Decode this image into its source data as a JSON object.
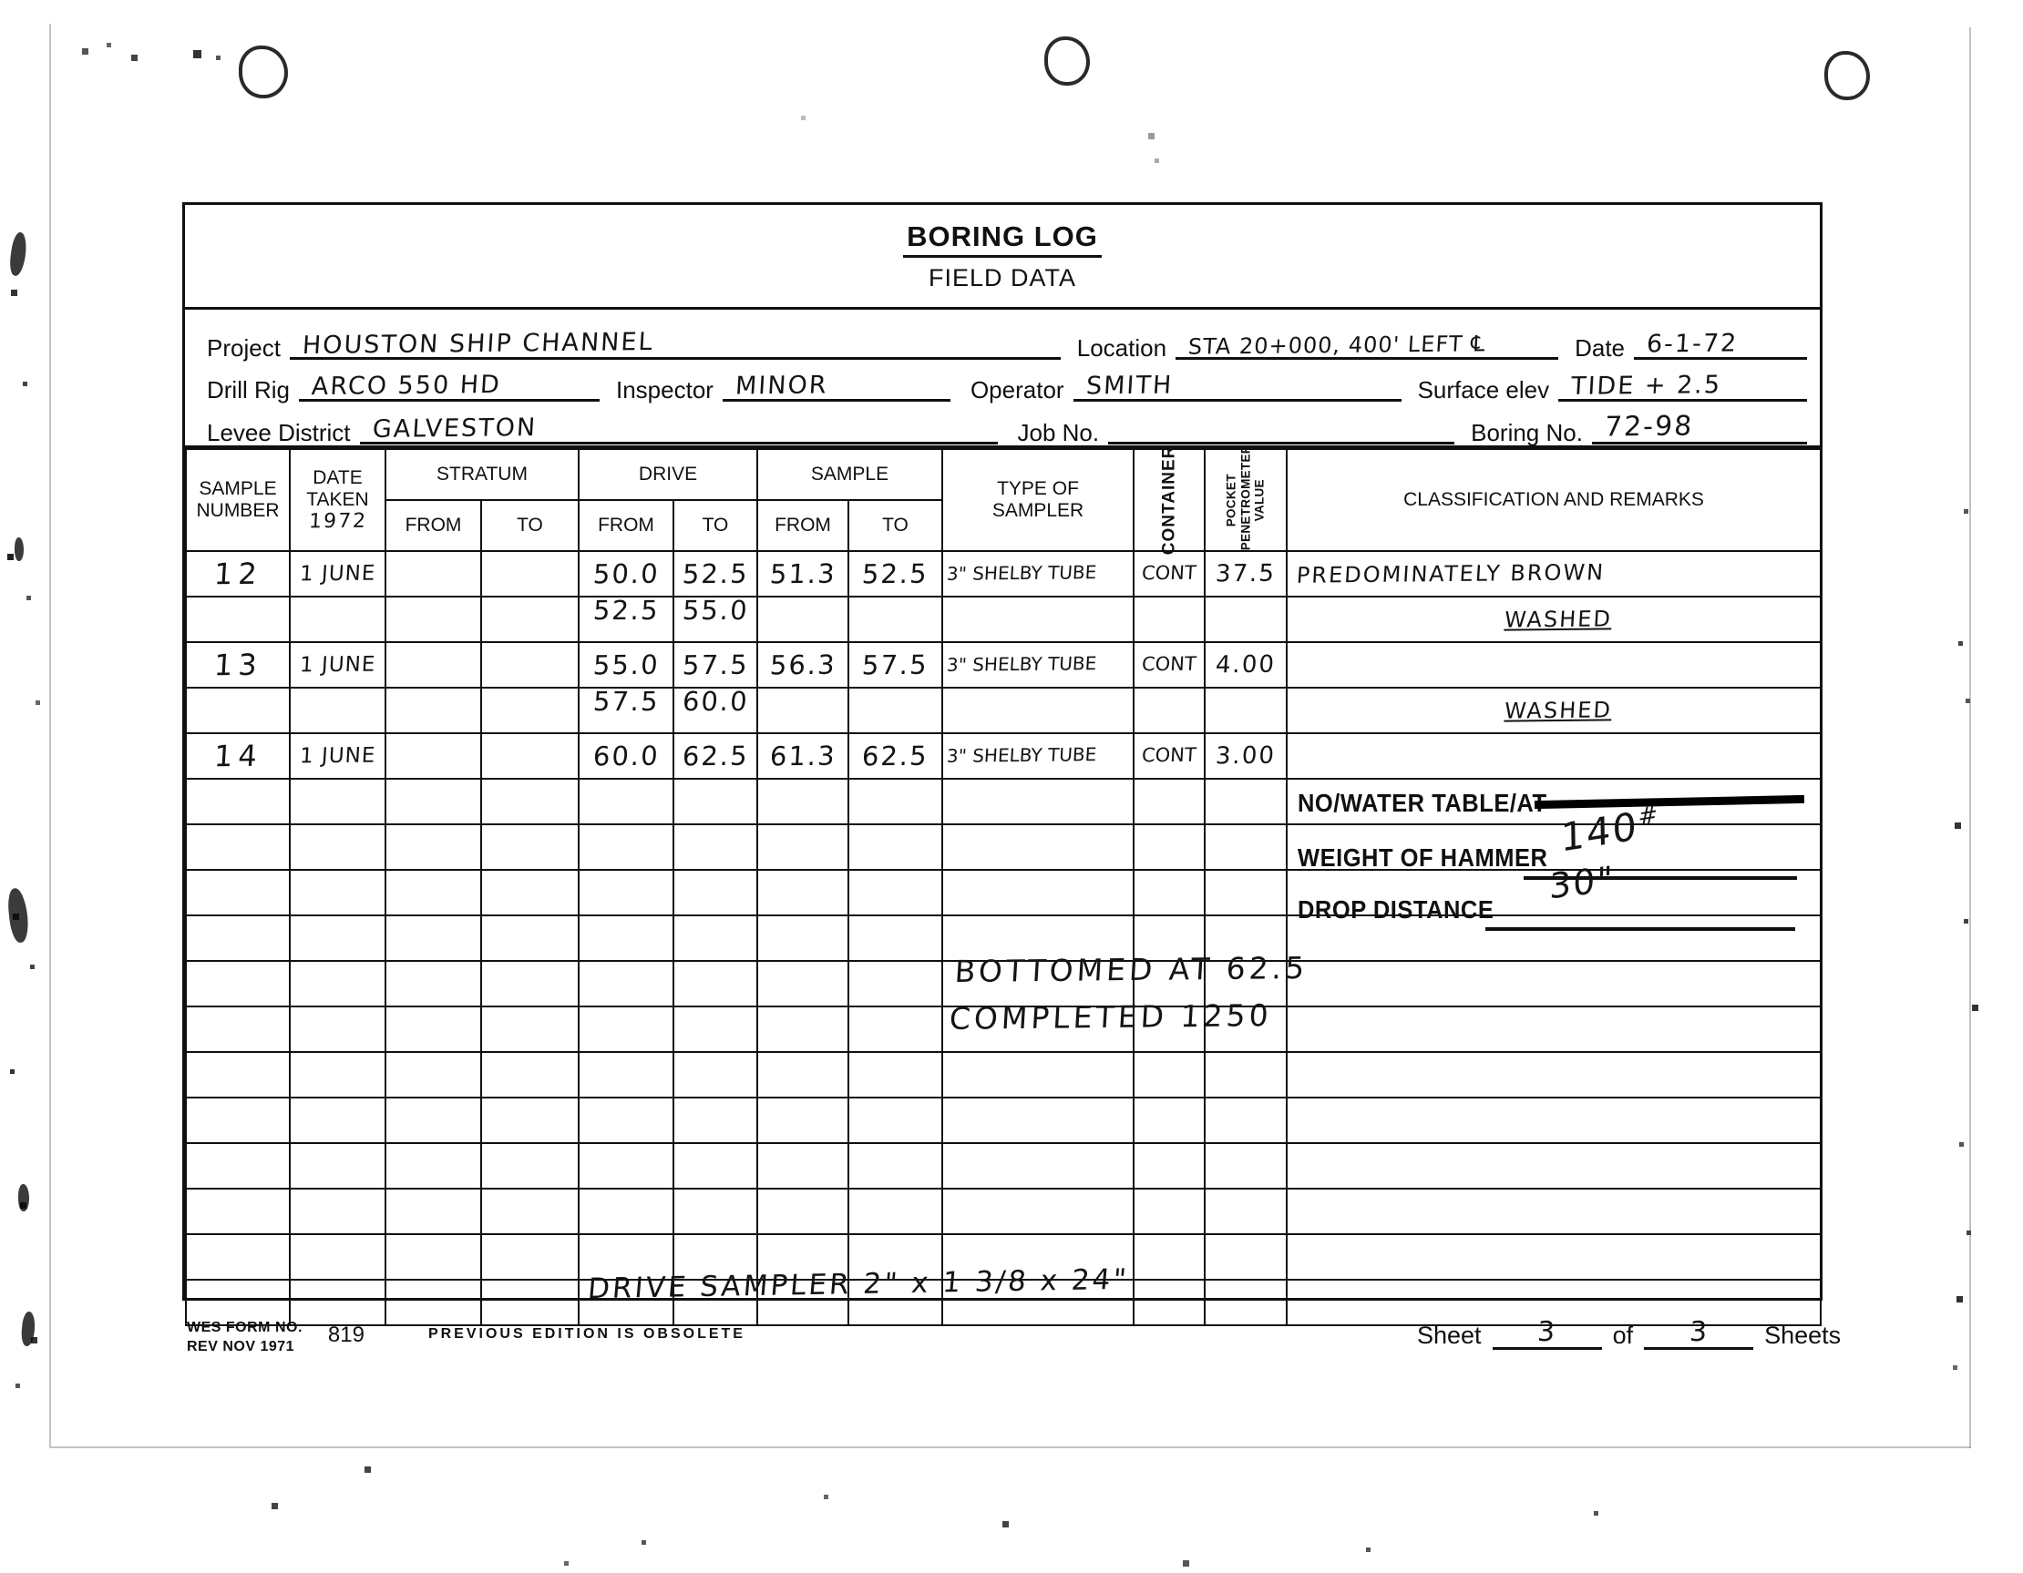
{
  "form": {
    "title": "BORING LOG",
    "subtitle": "FIELD DATA",
    "fields": {
      "project_label": "Project",
      "project_value": "HOUSTON SHIP CHANNEL",
      "location_label": "Location",
      "location_value": "STA 20+000, 400' LEFT ℄",
      "date_label": "Date",
      "date_value": "6-1-72",
      "drill_rig_label": "Drill Rig",
      "drill_rig_value": "ARCO 550 HD",
      "inspector_label": "Inspector",
      "inspector_value": "MINOR",
      "operator_label": "Operator",
      "operator_value": "SMITH",
      "surface_elev_label": "Surface elev",
      "surface_elev_value": "TIDE + 2.5",
      "levee_district_label": "Levee District",
      "levee_district_value": "GALVESTON",
      "job_no_label": "Job No.",
      "job_no_value": "",
      "boring_no_label": "Boring No.",
      "boring_no_value": "72-98"
    }
  },
  "table": {
    "headers": {
      "sample_number_l1": "SAMPLE",
      "sample_number_l2": "NUMBER",
      "date_taken_l1": "DATE",
      "date_taken_l2": "TAKEN",
      "year_hw": "1972",
      "stratum": "STRATUM",
      "drive": "DRIVE",
      "sample": "SAMPLE",
      "from": "FROM",
      "to": "TO",
      "type_of_sampler_l1": "TYPE OF",
      "type_of_sampler_l2": "SAMPLER",
      "container": "CONTAINER",
      "pocket_l1": "POCKET",
      "pocket_l2": "PENETROMETER",
      "pocket_l3": "VALUE",
      "classification": "CLASSIFICATION AND REMARKS"
    },
    "body": [
      [
        "12",
        "1 JUNE",
        "",
        "",
        "50.0",
        "52.5",
        "51.3",
        "52.5",
        "3\" SHELBY TUBE",
        "CONT",
        "37.5",
        "PREDOMINATELY BROWN"
      ],
      [
        "",
        "",
        "",
        "",
        {
          "t": "52.5",
          "cls": "straddle"
        },
        {
          "t": "55.0",
          "cls": "straddle"
        },
        "",
        "",
        "",
        "",
        "",
        {
          "t": "WASHED",
          "cls": "washed"
        }
      ],
      [
        "13",
        "1 JUNE",
        "",
        "",
        "55.0",
        "57.5",
        "56.3",
        "57.5",
        "3\" SHELBY TUBE",
        "CONT",
        "4.00",
        ""
      ],
      [
        "",
        "",
        "",
        "",
        {
          "t": "57.5",
          "cls": "straddle"
        },
        {
          "t": "60.0",
          "cls": "straddle"
        },
        "",
        "",
        "",
        "",
        "",
        {
          "t": "WASHED",
          "cls": "washed"
        }
      ],
      [
        "14",
        "1 JUNE",
        "",
        "",
        "60.0",
        "62.5",
        "61.3",
        "62.5",
        "3\" SHELBY TUBE",
        "CONT",
        "3.00",
        ""
      ],
      [
        "",
        "",
        "",
        "",
        "",
        "",
        "",
        "",
        "",
        "",
        "",
        ""
      ],
      [
        "",
        "",
        "",
        "",
        "",
        "",
        "",
        "",
        "",
        "",
        "",
        ""
      ],
      [
        "",
        "",
        "",
        "",
        "",
        "",
        "",
        "",
        "",
        "",
        "",
        ""
      ],
      [
        "",
        "",
        "",
        "",
        "",
        "",
        "",
        "",
        "",
        "",
        "",
        ""
      ],
      [
        "",
        "",
        "",
        "",
        "",
        "",
        "",
        "",
        "",
        "",
        "",
        ""
      ],
      [
        "",
        "",
        "",
        "",
        "",
        "",
        "",
        "",
        "",
        "",
        "",
        ""
      ],
      [
        "",
        "",
        "",
        "",
        "",
        "",
        "",
        "",
        "",
        "",
        "",
        ""
      ],
      [
        "",
        "",
        "",
        "",
        "",
        "",
        "",
        "",
        "",
        "",
        "",
        ""
      ],
      [
        "",
        "",
        "",
        "",
        "",
        "",
        "",
        "",
        "",
        "",
        "",
        ""
      ],
      [
        "",
        "",
        "",
        "",
        "",
        "",
        "",
        "",
        "",
        "",
        "",
        ""
      ],
      [
        "",
        "",
        "",
        "",
        "",
        "",
        "",
        "",
        "",
        "",
        "",
        ""
      ],
      [
        "",
        "",
        "",
        "",
        "",
        "",
        "",
        "",
        "",
        "",
        "",
        ""
      ]
    ]
  },
  "annotations": {
    "no_water_table_label": "NO/WATER TABLE/AT",
    "weight_of_hammer_label": "WEIGHT OF HAMMER",
    "weight_of_hammer_value": "140",
    "weight_of_hammer_unit": "#",
    "drop_distance_label": "DROP DISTANCE",
    "drop_distance_value": "30\"",
    "bottomed_at": "BOTTOMED AT 62.5",
    "completed": "COMPLETED 1250",
    "drive_sampler_note": "DRIVE SAMPLER 2\" x 1 3/8 x 24\""
  },
  "footer": {
    "form_no_line1": "WES FORM NO.",
    "form_no_line2": "REV NOV 1971",
    "form_number": "819",
    "obsolete_note": "PREVIOUS EDITION IS OBSOLETE",
    "sheet_label": "Sheet",
    "sheet_value": "3",
    "of_label": "of",
    "sheet_total": "3",
    "sheets_label": "Sheets"
  }
}
